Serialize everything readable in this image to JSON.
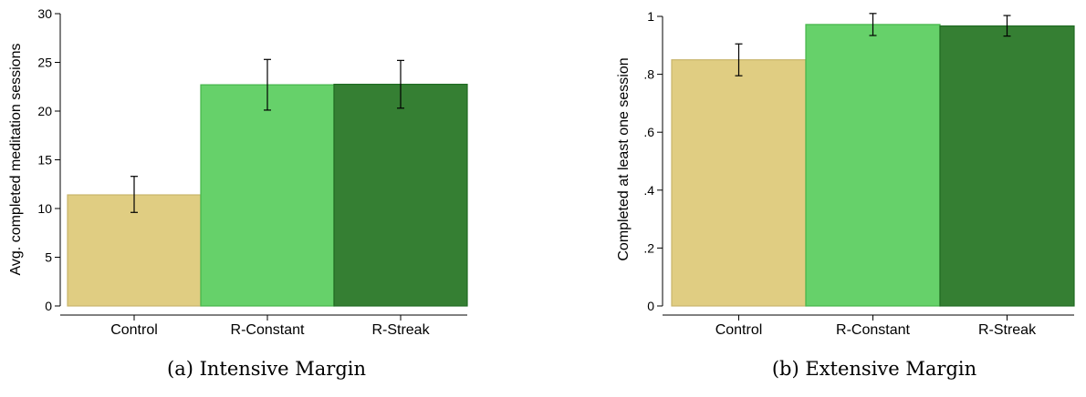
{
  "colors": {
    "Control": {
      "fill": "#e0cd82",
      "stroke": "#c8b46a"
    },
    "R-Constant": {
      "fill": "#66d16a",
      "stroke": "#45b54a"
    },
    "R-Streak": {
      "fill": "#357f33",
      "stroke": "#1f6a21"
    }
  },
  "chart_data": [
    {
      "type": "bar",
      "caption": "(a) Intensive Margin",
      "ylabel": "Avg. completed meditation sessions",
      "categories": [
        "Control",
        "R-Constant",
        "R-Streak"
      ],
      "values": [
        11.4,
        22.7,
        22.75
      ],
      "err_low": [
        9.6,
        20.1,
        20.3
      ],
      "err_high": [
        13.3,
        25.3,
        25.2
      ],
      "ylim": [
        0,
        30
      ],
      "yticks": [
        0,
        5,
        10,
        15,
        20,
        25,
        30
      ],
      "ytick_labels": [
        "0",
        "5",
        "10",
        "15",
        "20",
        "25",
        "30"
      ],
      "grid": false
    },
    {
      "type": "bar",
      "caption": "(b) Extensive Margin",
      "ylabel": "Completed at least one session",
      "categories": [
        "Control",
        "R-Constant",
        "R-Streak"
      ],
      "values": [
        0.85,
        0.972,
        0.967
      ],
      "err_low": [
        0.795,
        0.934,
        0.932
      ],
      "err_high": [
        0.905,
        1.01,
        1.003
      ],
      "ylim": [
        0,
        1.02
      ],
      "yticks": [
        0,
        0.2,
        0.4,
        0.6,
        0.8,
        1
      ],
      "ytick_labels": [
        "0",
        ".2",
        ".4",
        ".6",
        ".8",
        "1"
      ],
      "grid": false
    }
  ]
}
